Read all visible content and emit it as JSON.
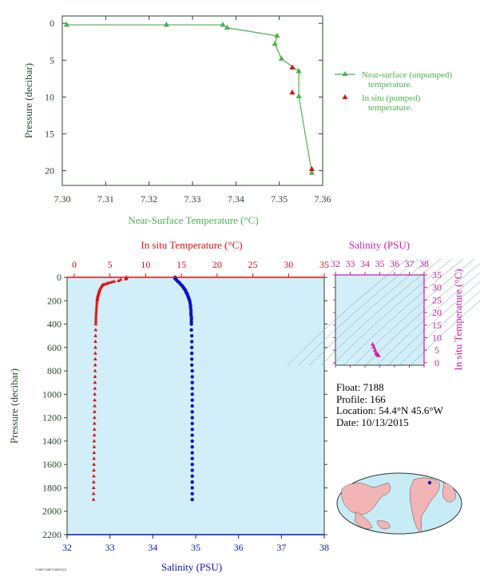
{
  "colors": {
    "green": "#4cb050",
    "red": "#dd1010",
    "blue": "#0a14c8",
    "magenta": "#cc22aa",
    "axis_dark": "#2a4a2a",
    "plot_bg": "#d2eef8"
  },
  "chart_data": [
    {
      "type": "line",
      "xlabel": "Near-Surface Temperature (°C)",
      "ylabel": "Pressure (decibar)",
      "xlim": [
        7.3,
        7.36
      ],
      "ylim": [
        22,
        -1
      ],
      "xticks": [
        "7.30",
        "7.31",
        "7.32",
        "7.33",
        "7.34",
        "7.35",
        "7.36"
      ],
      "yticks": [
        "0",
        "5",
        "10",
        "15",
        "20"
      ],
      "legend_position": "right",
      "series": [
        {
          "name": "Near-surface (unpumped) temperature.",
          "color": "#4cb050",
          "marker": "triangle",
          "points": [
            [
              7.301,
              0.2
            ],
            [
              7.324,
              0.2
            ],
            [
              7.337,
              0.2
            ],
            [
              7.338,
              0.6
            ],
            [
              7.3495,
              1.7
            ],
            [
              7.349,
              2.8
            ],
            [
              7.3505,
              4.8
            ],
            [
              7.3545,
              6.5
            ],
            [
              7.3545,
              9.9
            ],
            [
              7.3575,
              20.3
            ]
          ]
        },
        {
          "name": "In situ (pumped) temperature.",
          "color": "#dd1010",
          "marker": "triangle",
          "points": [
            [
              7.353,
              6.0
            ],
            [
              7.353,
              9.4
            ],
            [
              7.3575,
              19.8
            ]
          ]
        }
      ]
    },
    {
      "type": "scatter",
      "title_top": "In situ Temperature (°C)",
      "xlabel_bottom": "Salinity (PSU)",
      "ylabel": "Pressure (decibar)",
      "temp_lim": [
        -1,
        35
      ],
      "temp_ticks": [
        "0",
        "5",
        "10",
        "15",
        "20",
        "25",
        "30",
        "35"
      ],
      "sal_lim": [
        32,
        38
      ],
      "sal_ticks": [
        "32",
        "33",
        "34",
        "35",
        "36",
        "37",
        "38"
      ],
      "pressure_lim": [
        0,
        2200
      ],
      "pressure_ticks": [
        "0",
        "200",
        "400",
        "600",
        "800",
        "1000",
        "1200",
        "1400",
        "1600",
        "1800",
        "2000",
        "2200"
      ],
      "temperature_profile": [
        [
          7.3,
          0
        ],
        [
          7.3,
          5
        ],
        [
          7.3,
          10
        ],
        [
          7.2,
          15
        ],
        [
          6.5,
          20
        ],
        [
          6.2,
          30
        ],
        [
          5.6,
          35
        ],
        [
          5.3,
          40
        ],
        [
          5.0,
          45
        ],
        [
          4.7,
          50
        ],
        [
          4.5,
          55
        ],
        [
          4.2,
          60
        ],
        [
          4.0,
          65
        ],
        [
          3.9,
          70
        ],
        [
          3.8,
          80
        ],
        [
          3.7,
          90
        ],
        [
          3.6,
          100
        ],
        [
          3.55,
          110
        ],
        [
          3.5,
          120
        ],
        [
          3.45,
          130
        ],
        [
          3.4,
          140
        ],
        [
          3.35,
          150
        ],
        [
          3.3,
          160
        ],
        [
          3.28,
          170
        ],
        [
          3.25,
          180
        ],
        [
          3.22,
          190
        ],
        [
          3.2,
          200
        ],
        [
          3.18,
          220
        ],
        [
          3.15,
          240
        ],
        [
          3.12,
          260
        ],
        [
          3.1,
          280
        ],
        [
          3.08,
          300
        ],
        [
          3.06,
          320
        ],
        [
          3.05,
          340
        ],
        [
          3.04,
          360
        ],
        [
          3.03,
          380
        ],
        [
          3.02,
          400
        ],
        [
          3.0,
          450
        ],
        [
          2.98,
          500
        ],
        [
          2.97,
          550
        ],
        [
          2.96,
          600
        ],
        [
          2.95,
          650
        ],
        [
          2.94,
          700
        ],
        [
          2.93,
          750
        ],
        [
          2.92,
          800
        ],
        [
          2.91,
          850
        ],
        [
          2.9,
          900
        ],
        [
          2.89,
          950
        ],
        [
          2.88,
          1000
        ],
        [
          2.87,
          1050
        ],
        [
          2.86,
          1100
        ],
        [
          2.85,
          1150
        ],
        [
          2.84,
          1200
        ],
        [
          2.83,
          1250
        ],
        [
          2.82,
          1300
        ],
        [
          2.81,
          1350
        ],
        [
          2.8,
          1400
        ],
        [
          2.79,
          1450
        ],
        [
          2.78,
          1500
        ],
        [
          2.77,
          1550
        ],
        [
          2.76,
          1600
        ],
        [
          2.75,
          1650
        ],
        [
          2.74,
          1700
        ],
        [
          2.73,
          1750
        ],
        [
          2.72,
          1800
        ],
        [
          2.71,
          1850
        ],
        [
          2.7,
          1900
        ]
      ],
      "salinity_profile": [
        [
          34.52,
          0
        ],
        [
          34.52,
          5
        ],
        [
          34.52,
          10
        ],
        [
          34.53,
          15
        ],
        [
          34.55,
          20
        ],
        [
          34.57,
          30
        ],
        [
          34.6,
          40
        ],
        [
          34.63,
          50
        ],
        [
          34.65,
          60
        ],
        [
          34.68,
          70
        ],
        [
          34.7,
          80
        ],
        [
          34.72,
          90
        ],
        [
          34.74,
          100
        ],
        [
          34.76,
          110
        ],
        [
          34.77,
          120
        ],
        [
          34.78,
          130
        ],
        [
          34.8,
          140
        ],
        [
          34.81,
          150
        ],
        [
          34.82,
          160
        ],
        [
          34.83,
          170
        ],
        [
          34.84,
          180
        ],
        [
          34.85,
          190
        ],
        [
          34.86,
          200
        ],
        [
          34.87,
          220
        ],
        [
          34.88,
          240
        ],
        [
          34.88,
          260
        ],
        [
          34.89,
          280
        ],
        [
          34.89,
          300
        ],
        [
          34.89,
          320
        ],
        [
          34.9,
          340
        ],
        [
          34.9,
          360
        ],
        [
          34.9,
          380
        ],
        [
          34.9,
          400
        ],
        [
          34.9,
          450
        ],
        [
          34.91,
          500
        ],
        [
          34.91,
          550
        ],
        [
          34.91,
          600
        ],
        [
          34.91,
          650
        ],
        [
          34.91,
          700
        ],
        [
          34.91,
          750
        ],
        [
          34.92,
          800
        ],
        [
          34.92,
          850
        ],
        [
          34.92,
          900
        ],
        [
          34.92,
          950
        ],
        [
          34.92,
          1000
        ],
        [
          34.92,
          1050
        ],
        [
          34.92,
          1100
        ],
        [
          34.92,
          1150
        ],
        [
          34.92,
          1200
        ],
        [
          34.92,
          1250
        ],
        [
          34.92,
          1300
        ],
        [
          34.92,
          1350
        ],
        [
          34.92,
          1400
        ],
        [
          34.92,
          1450
        ],
        [
          34.92,
          1500
        ],
        [
          34.92,
          1550
        ],
        [
          34.92,
          1600
        ],
        [
          34.92,
          1650
        ],
        [
          34.92,
          1700
        ],
        [
          34.92,
          1750
        ],
        [
          34.92,
          1800
        ],
        [
          34.92,
          1850
        ],
        [
          34.92,
          1900
        ]
      ]
    },
    {
      "type": "scatter",
      "title_top": "Salinity (PSU)",
      "ylabel_right": "In situ Temperature (°C)",
      "sal_lim": [
        32,
        38
      ],
      "sal_ticks": [
        "32",
        "33",
        "34",
        "35",
        "36",
        "37",
        "38"
      ],
      "temp_lim": [
        -1,
        35
      ],
      "temp_ticks": [
        "0",
        "5",
        "10",
        "15",
        "20",
        "25",
        "30",
        "35"
      ],
      "points": [
        [
          34.52,
          7.3
        ],
        [
          34.6,
          6.2
        ],
        [
          34.68,
          5.0
        ],
        [
          34.74,
          4.0
        ],
        [
          34.8,
          3.4
        ],
        [
          34.86,
          3.2
        ],
        [
          34.9,
          3.0
        ],
        [
          34.92,
          2.8
        ]
      ]
    }
  ],
  "float_info": {
    "float": "Float:  7188",
    "profile": "Profile:  166",
    "location": "Location:  54.4°N  45.6°W",
    "date": "Date:  10/13/2015"
  },
  "footer_id": "7188/7188/7188/2015"
}
